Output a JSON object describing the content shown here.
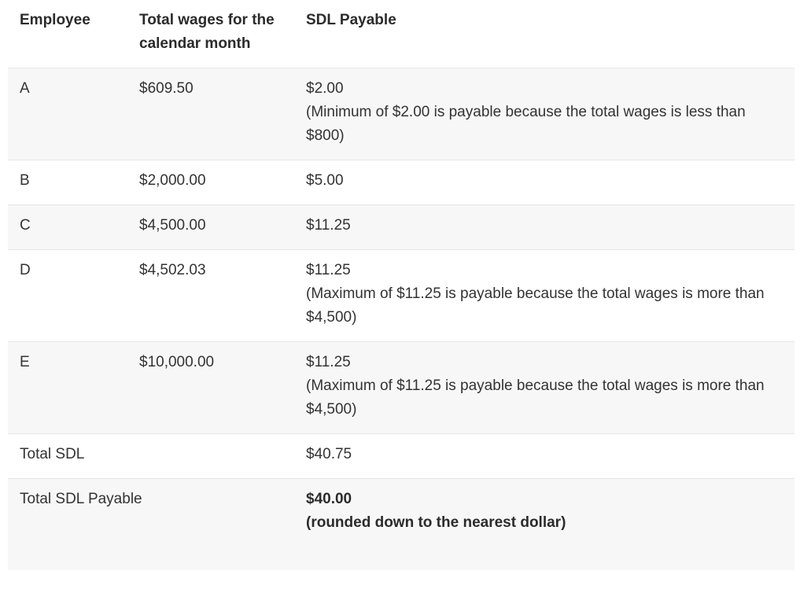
{
  "header": {
    "employee": "Employee",
    "total_wages": "Total wages for the calendar month",
    "sdl_payable": "SDL Payable"
  },
  "rows": [
    {
      "employee": "A",
      "wages": "$609.50",
      "sdl": "$2.00",
      "note": "(Minimum of $2.00 is payable because the total wages is less than $800)"
    },
    {
      "employee": "B",
      "wages": "$2,000.00",
      "sdl": "$5.00",
      "note": ""
    },
    {
      "employee": "C",
      "wages": "$4,500.00",
      "sdl": "$11.25",
      "note": ""
    },
    {
      "employee": "D",
      "wages": "$4,502.03",
      "sdl": "$11.25",
      "note": "(Maximum of $11.25 is payable because the total wages is more than $4,500)"
    },
    {
      "employee": "E",
      "wages": "$10,000.00",
      "sdl": "$11.25",
      "note": "(Maximum of $11.25 is payable because the total wages is more than $4,500)"
    }
  ],
  "total_sdl": {
    "label": "Total SDL",
    "value": "$40.75"
  },
  "total_sdl_payable": {
    "label": "Total SDL Payable",
    "value": "$40.00",
    "note": "(rounded down to the nearest dollar)"
  }
}
